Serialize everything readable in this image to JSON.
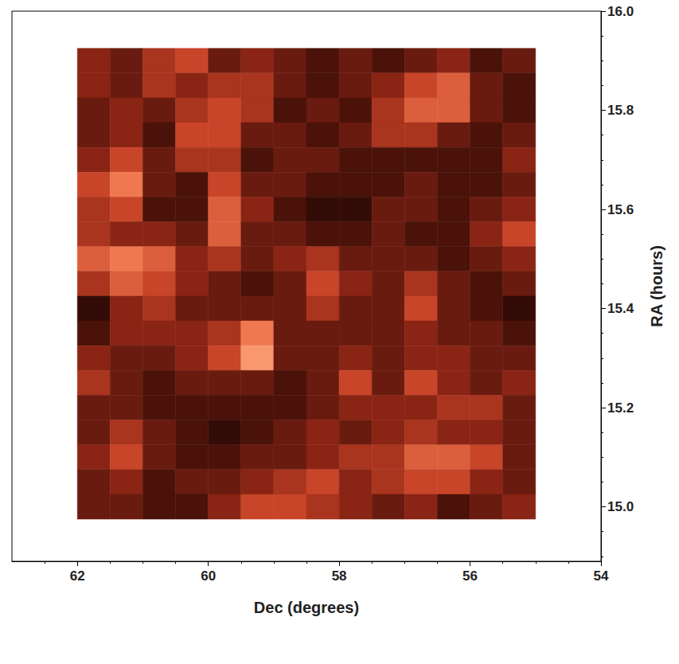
{
  "chart_data": {
    "type": "heatmap",
    "x_label": "Dec (degrees)",
    "y_label": "RA (hours)",
    "xlim": [
      63,
      54
    ],
    "xticks": [
      62,
      60,
      58,
      56,
      54
    ],
    "ylim": [
      14.89,
      16.0
    ],
    "yticks": [
      {
        "value": 15.0,
        "label": "15.0"
      },
      15.2,
      15.4,
      15.6,
      15.8,
      {
        "value": 16.0,
        "label": "16.0"
      }
    ],
    "x": [
      61.75,
      61.25,
      60.75,
      60.25,
      59.75,
      59.25,
      58.75,
      58.25,
      57.75,
      57.25,
      56.75,
      56.25,
      55.75,
      55.25
    ],
    "y": [
      15.9,
      15.85,
      15.8,
      15.75,
      15.7,
      15.65,
      15.6,
      15.55,
      15.5,
      15.45,
      15.4,
      15.35,
      15.3,
      15.25,
      15.2,
      15.15,
      15.1,
      15.05,
      15.0
    ],
    "z": [
      [
        4,
        3,
        5,
        6,
        3,
        4,
        3,
        2,
        3,
        2,
        3,
        4,
        2,
        3
      ],
      [
        4,
        3,
        5,
        4,
        5,
        5,
        3,
        2,
        3,
        4,
        6,
        7,
        3,
        2
      ],
      [
        3,
        4,
        3,
        5,
        6,
        5,
        2,
        3,
        2,
        5,
        7,
        7,
        3,
        2
      ],
      [
        3,
        4,
        2,
        6,
        6,
        3,
        3,
        2,
        3,
        5,
        5,
        3,
        2,
        3
      ],
      [
        4,
        6,
        3,
        5,
        5,
        2,
        3,
        3,
        2,
        2,
        2,
        2,
        2,
        4
      ],
      [
        6,
        8,
        3,
        2,
        6,
        3,
        3,
        2,
        2,
        2,
        3,
        2,
        2,
        3
      ],
      [
        5,
        6,
        2,
        2,
        7,
        4,
        2,
        1,
        1,
        3,
        3,
        2,
        3,
        4
      ],
      [
        5,
        4,
        4,
        3,
        7,
        3,
        3,
        2,
        2,
        3,
        2,
        2,
        4,
        6
      ],
      [
        7,
        8,
        7,
        4,
        5,
        3,
        4,
        5,
        3,
        3,
        3,
        2,
        3,
        4
      ],
      [
        5,
        7,
        6,
        4,
        3,
        2,
        3,
        6,
        4,
        3,
        5,
        3,
        2,
        3
      ],
      [
        1,
        4,
        5,
        3,
        3,
        3,
        3,
        5,
        3,
        3,
        6,
        3,
        2,
        1
      ],
      [
        2,
        4,
        4,
        4,
        5,
        8,
        3,
        3,
        3,
        3,
        4,
        3,
        3,
        2
      ],
      [
        4,
        3,
        3,
        4,
        6,
        9,
        3,
        3,
        4,
        3,
        4,
        4,
        3,
        3
      ],
      [
        5,
        3,
        2,
        3,
        3,
        3,
        2,
        3,
        6,
        3,
        6,
        4,
        3,
        4
      ],
      [
        3,
        3,
        2,
        2,
        2,
        2,
        2,
        3,
        4,
        4,
        4,
        5,
        5,
        3
      ],
      [
        3,
        5,
        3,
        2,
        1,
        2,
        3,
        4,
        3,
        4,
        5,
        4,
        4,
        3
      ],
      [
        4,
        6,
        3,
        2,
        2,
        3,
        3,
        4,
        5,
        5,
        7,
        7,
        6,
        3
      ],
      [
        3,
        4,
        2,
        3,
        3,
        4,
        5,
        6,
        4,
        5,
        6,
        6,
        4,
        3
      ],
      [
        3,
        3,
        2,
        2,
        4,
        6,
        6,
        5,
        4,
        3,
        4,
        2,
        3,
        4
      ]
    ],
    "zlim": [
      0,
      10
    ],
    "grid": false
  }
}
